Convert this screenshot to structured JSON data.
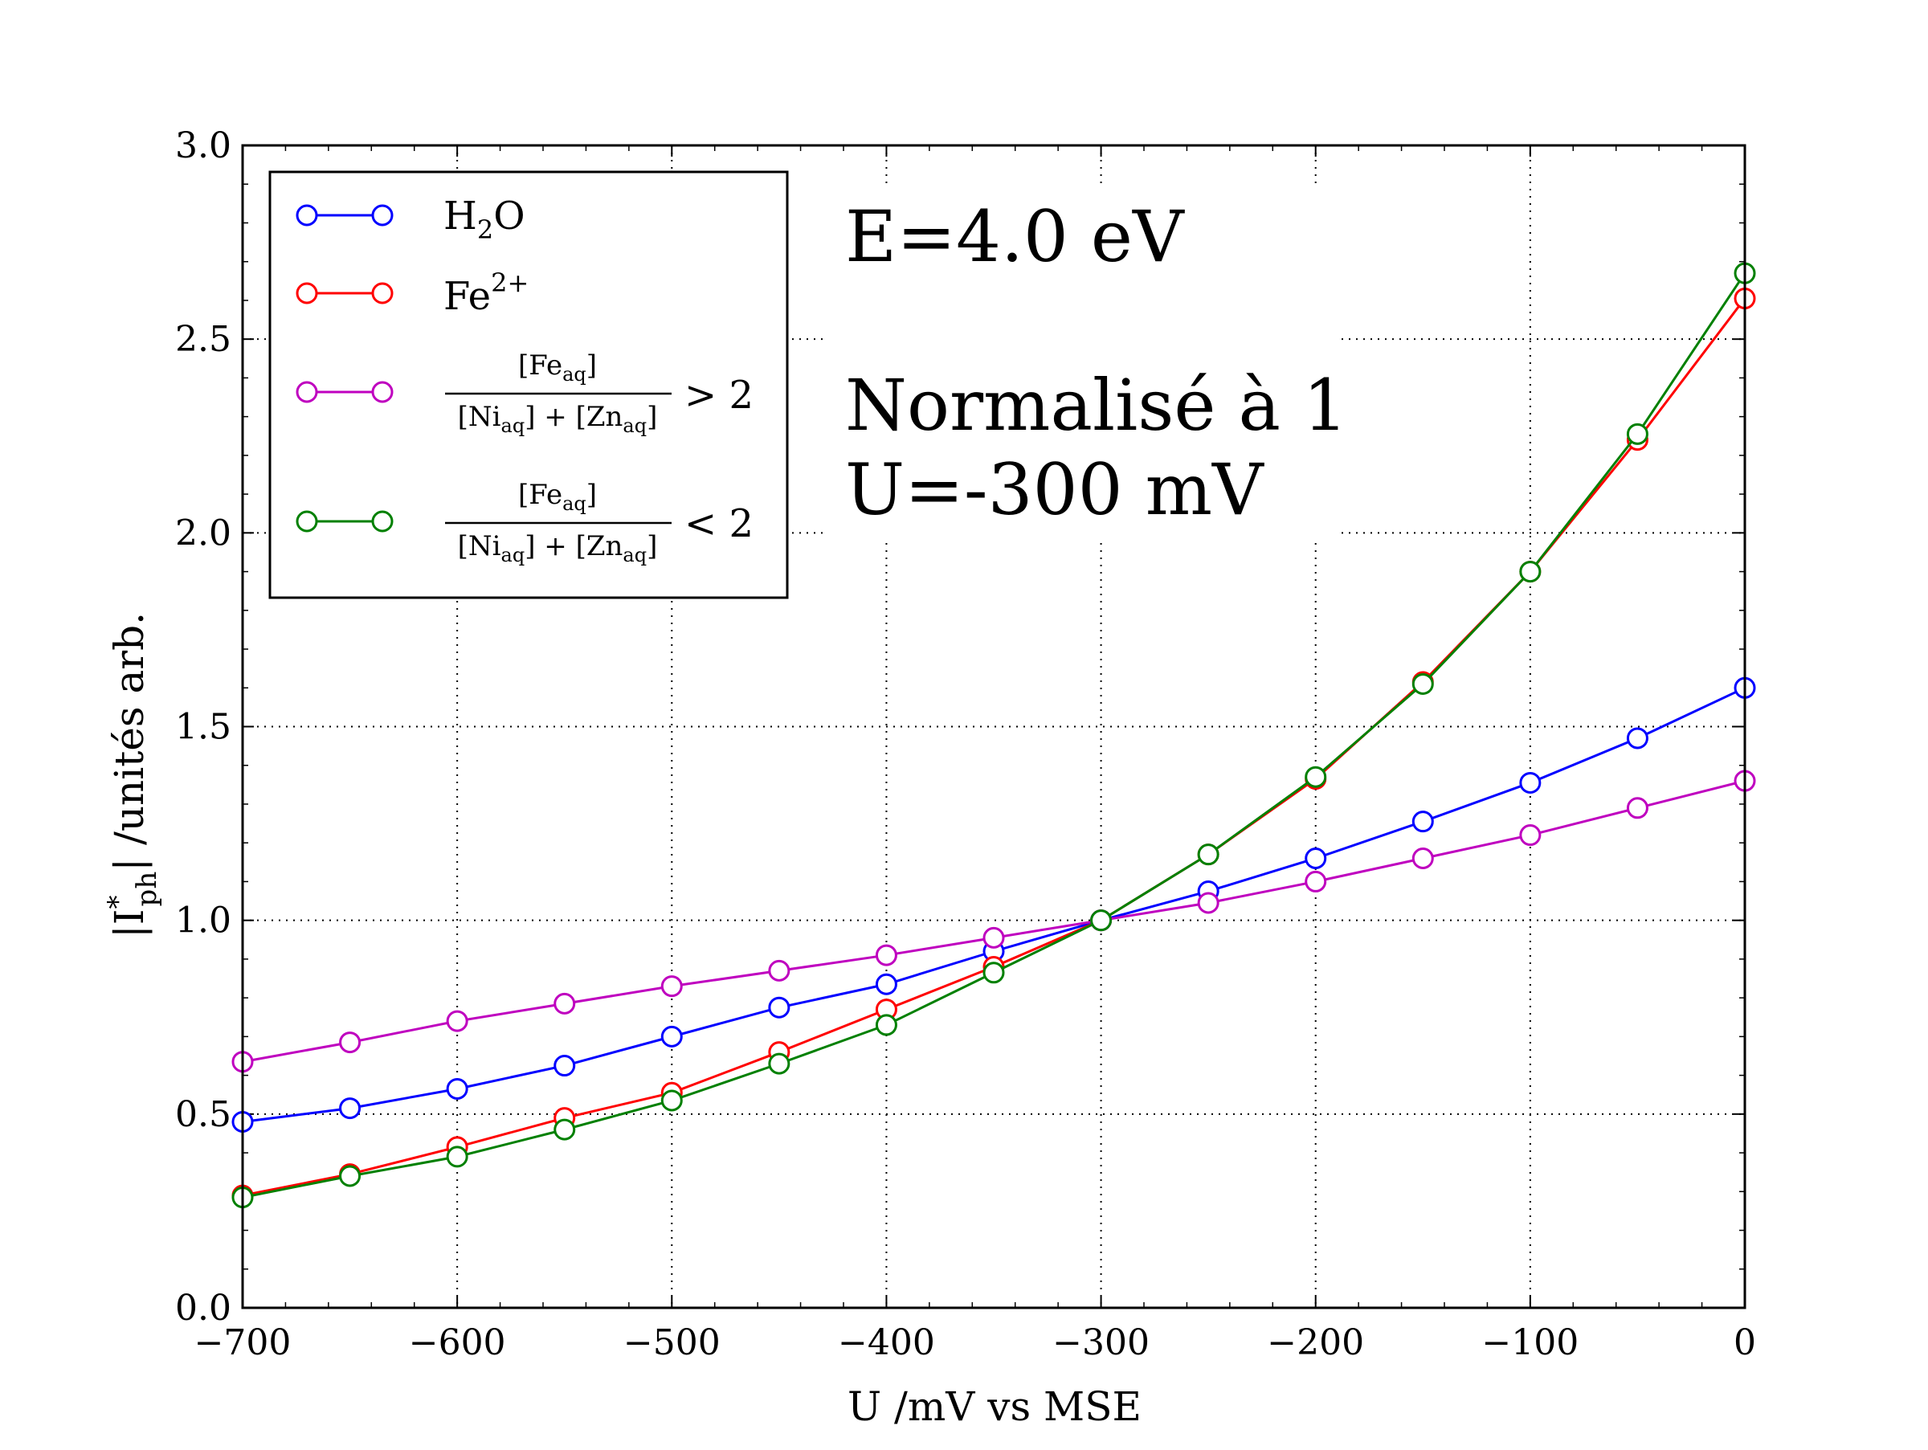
{
  "chart_data": {
    "type": "line",
    "xlabel": "U /mV vs MSE",
    "ylabel": "|I*ph| /unités arb.",
    "xlim": [
      -700,
      0
    ],
    "ylim": [
      0.0,
      3.0
    ],
    "x_ticks": [
      "−700",
      "−600",
      "−500",
      "−400",
      "−300",
      "−200",
      "−100",
      "0"
    ],
    "y_ticks": [
      "0.0",
      "0.5",
      "1.0",
      "1.5",
      "2.0",
      "2.5",
      "3.0"
    ],
    "grid": true,
    "legend_position": "top-left",
    "annotations": [
      "E=4.0 eV",
      "Normalisé à 1",
      "U=-300 mV"
    ],
    "x": [
      -700,
      -650,
      -600,
      -550,
      -500,
      -450,
      -400,
      -350,
      -300,
      -250,
      -200,
      -150,
      -100,
      -50,
      0
    ],
    "series": [
      {
        "name": "H2O",
        "color": "#0000ff",
        "values": [
          0.48,
          0.515,
          0.565,
          0.625,
          0.7,
          0.775,
          0.835,
          0.92,
          1.0,
          1.075,
          1.16,
          1.255,
          1.355,
          1.47,
          1.6
        ]
      },
      {
        "name": "Fe2+",
        "color": "#ff0000",
        "values": [
          0.29,
          0.345,
          0.415,
          0.49,
          0.555,
          0.66,
          0.77,
          0.88,
          1.0,
          1.17,
          1.365,
          1.615,
          1.9,
          2.24,
          2.605
        ]
      },
      {
        "name": "[Fe_aq] / ([Ni_aq] + [Zn_aq]) > 2",
        "color": "#bf00bf",
        "values": [
          0.635,
          0.685,
          0.74,
          0.785,
          0.83,
          0.87,
          0.91,
          0.955,
          1.0,
          1.045,
          1.1,
          1.16,
          1.22,
          1.29,
          1.36
        ]
      },
      {
        "name": "[Fe_aq] / ([Ni_aq] + [Zn_aq]) < 2",
        "color": "#008000",
        "values": [
          0.285,
          0.34,
          0.39,
          0.46,
          0.535,
          0.63,
          0.73,
          0.865,
          1.0,
          1.17,
          1.37,
          1.61,
          1.9,
          2.255,
          2.67
        ]
      }
    ]
  },
  "legend": {
    "h2o": {
      "main": "H",
      "sub": "2",
      "tail": "O"
    },
    "fe": {
      "main": "Fe",
      "sup": "2+"
    },
    "frac": {
      "num_open": "[Fe",
      "num_sub": "aq",
      "num_close": "]",
      "den_a_open": "[Ni",
      "den_a_sub": "aq",
      "den_a_close": "]",
      "den_plus": " + ",
      "den_b_open": "[Zn",
      "den_b_sub": "aq",
      "den_b_close": "]",
      "gt": "> 2",
      "lt": "< 2"
    }
  },
  "ylabel_parts": {
    "open": "|I",
    "sup": "*",
    "sub": "ph",
    "close": "| /unités arb."
  }
}
